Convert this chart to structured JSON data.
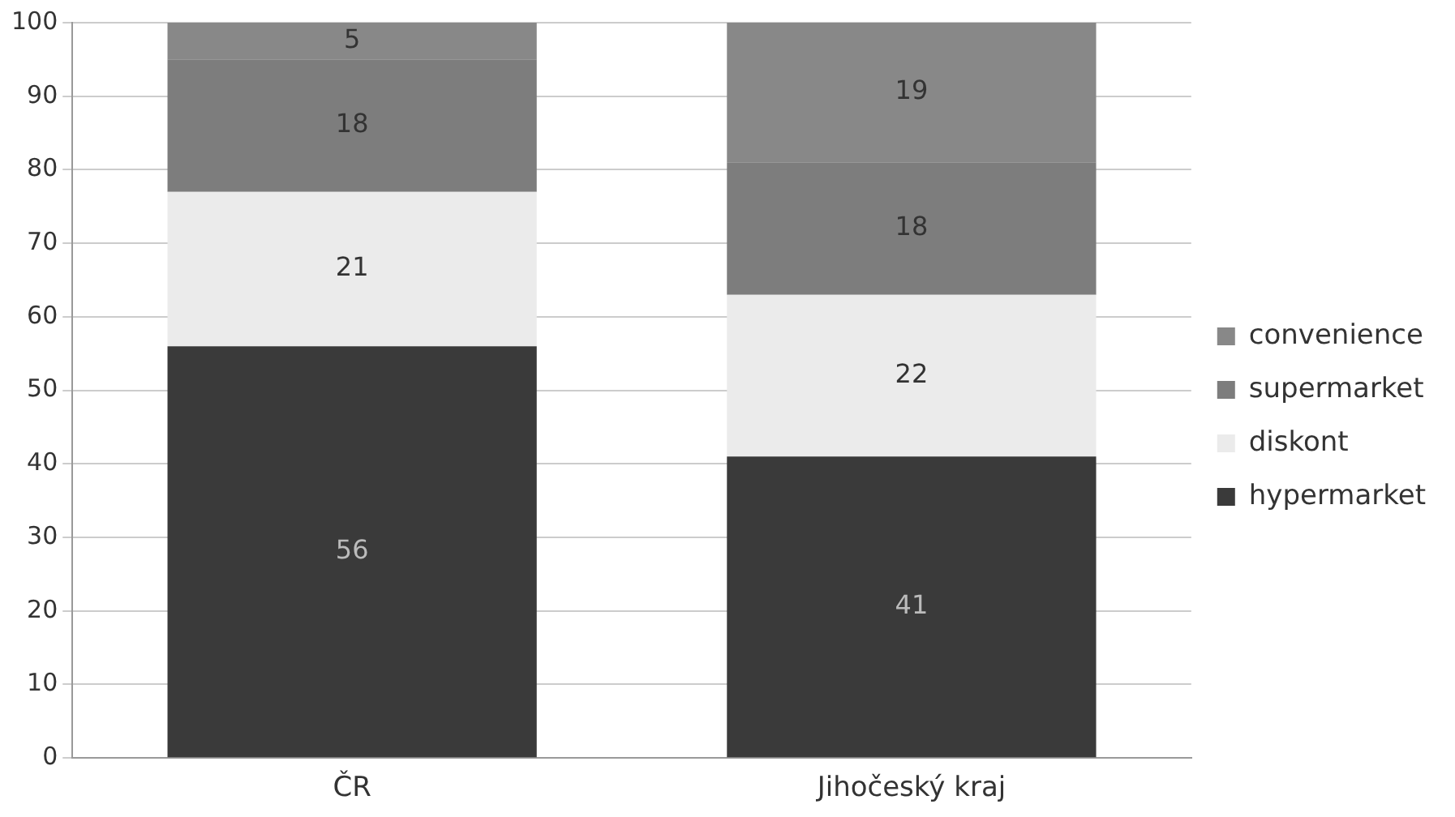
{
  "chart_data": {
    "type": "bar",
    "stacked": true,
    "categories": [
      "ČR",
      "Jihočeský kraj"
    ],
    "series": [
      {
        "name": "hypermarket",
        "color": "#3a3a3a",
        "values": [
          56,
          41
        ]
      },
      {
        "name": "diskont",
        "color": "#ebebeb",
        "values": [
          21,
          22
        ]
      },
      {
        "name": "supermarket",
        "color": "#7d7d7d",
        "values": [
          18,
          18
        ]
      },
      {
        "name": "convenience",
        "color": "#888888",
        "values": [
          5,
          19
        ]
      }
    ],
    "ylim": [
      0,
      100
    ],
    "yticks": [
      0,
      10,
      20,
      30,
      40,
      50,
      60,
      70,
      80,
      90,
      100
    ],
    "grid": "y",
    "legend": "right",
    "data_labels": true
  }
}
